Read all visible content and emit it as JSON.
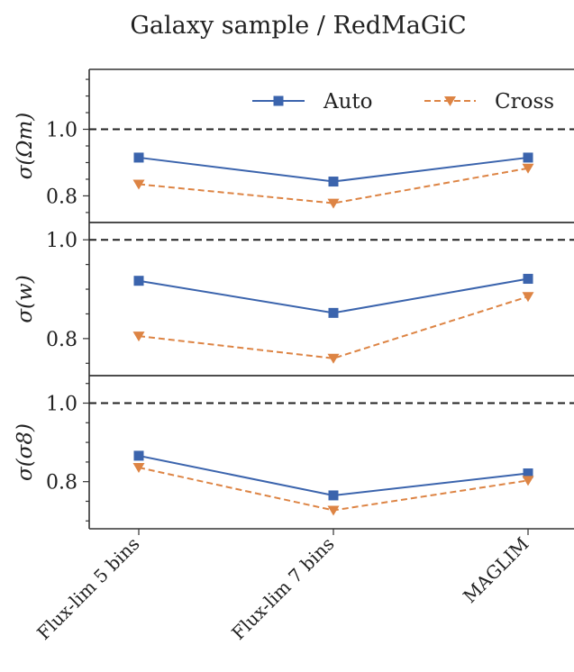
{
  "chart_data": {
    "type": "line",
    "title": "Galaxy sample / RedMaGiC",
    "categories": [
      "Flux-lim 5 bins",
      "Flux-lim 7 bins",
      "MAGLIM"
    ],
    "reference_line": 1.0,
    "legend": {
      "placement": "top-right",
      "panel": 0
    },
    "colors": {
      "auto": "#3b64ad",
      "cross": "#dd8444"
    },
    "panels": [
      {
        "ylabel": "σ(Ωm)",
        "ylim": [
          0.72,
          1.18
        ],
        "yticks": [
          0.8,
          1.0
        ],
        "ytick_labels": [
          "0.8",
          "1.0"
        ],
        "series": [
          {
            "name": "Auto",
            "values": [
              0.915,
              0.843,
              0.915
            ]
          },
          {
            "name": "Cross",
            "values": [
              0.835,
              0.778,
              0.883
            ]
          }
        ]
      },
      {
        "ylabel": "σ(w)",
        "ylim": [
          0.725,
          1.035
        ],
        "yticks": [
          0.8,
          1.0
        ],
        "ytick_labels": [
          "0.8",
          "1.0"
        ],
        "series": [
          {
            "name": "Auto",
            "values": [
              0.917,
              0.852,
              0.921
            ]
          },
          {
            "name": "Cross",
            "values": [
              0.805,
              0.76,
              0.885
            ]
          }
        ]
      },
      {
        "ylabel": "σ(σ8)",
        "ylim": [
          0.68,
          1.07
        ],
        "yticks": [
          0.8,
          1.0
        ],
        "ytick_labels": [
          "0.8",
          "1.0"
        ],
        "series": [
          {
            "name": "Auto",
            "values": [
              0.866,
              0.765,
              0.821
            ]
          },
          {
            "name": "Cross",
            "values": [
              0.836,
              0.727,
              0.803
            ]
          }
        ]
      }
    ]
  }
}
